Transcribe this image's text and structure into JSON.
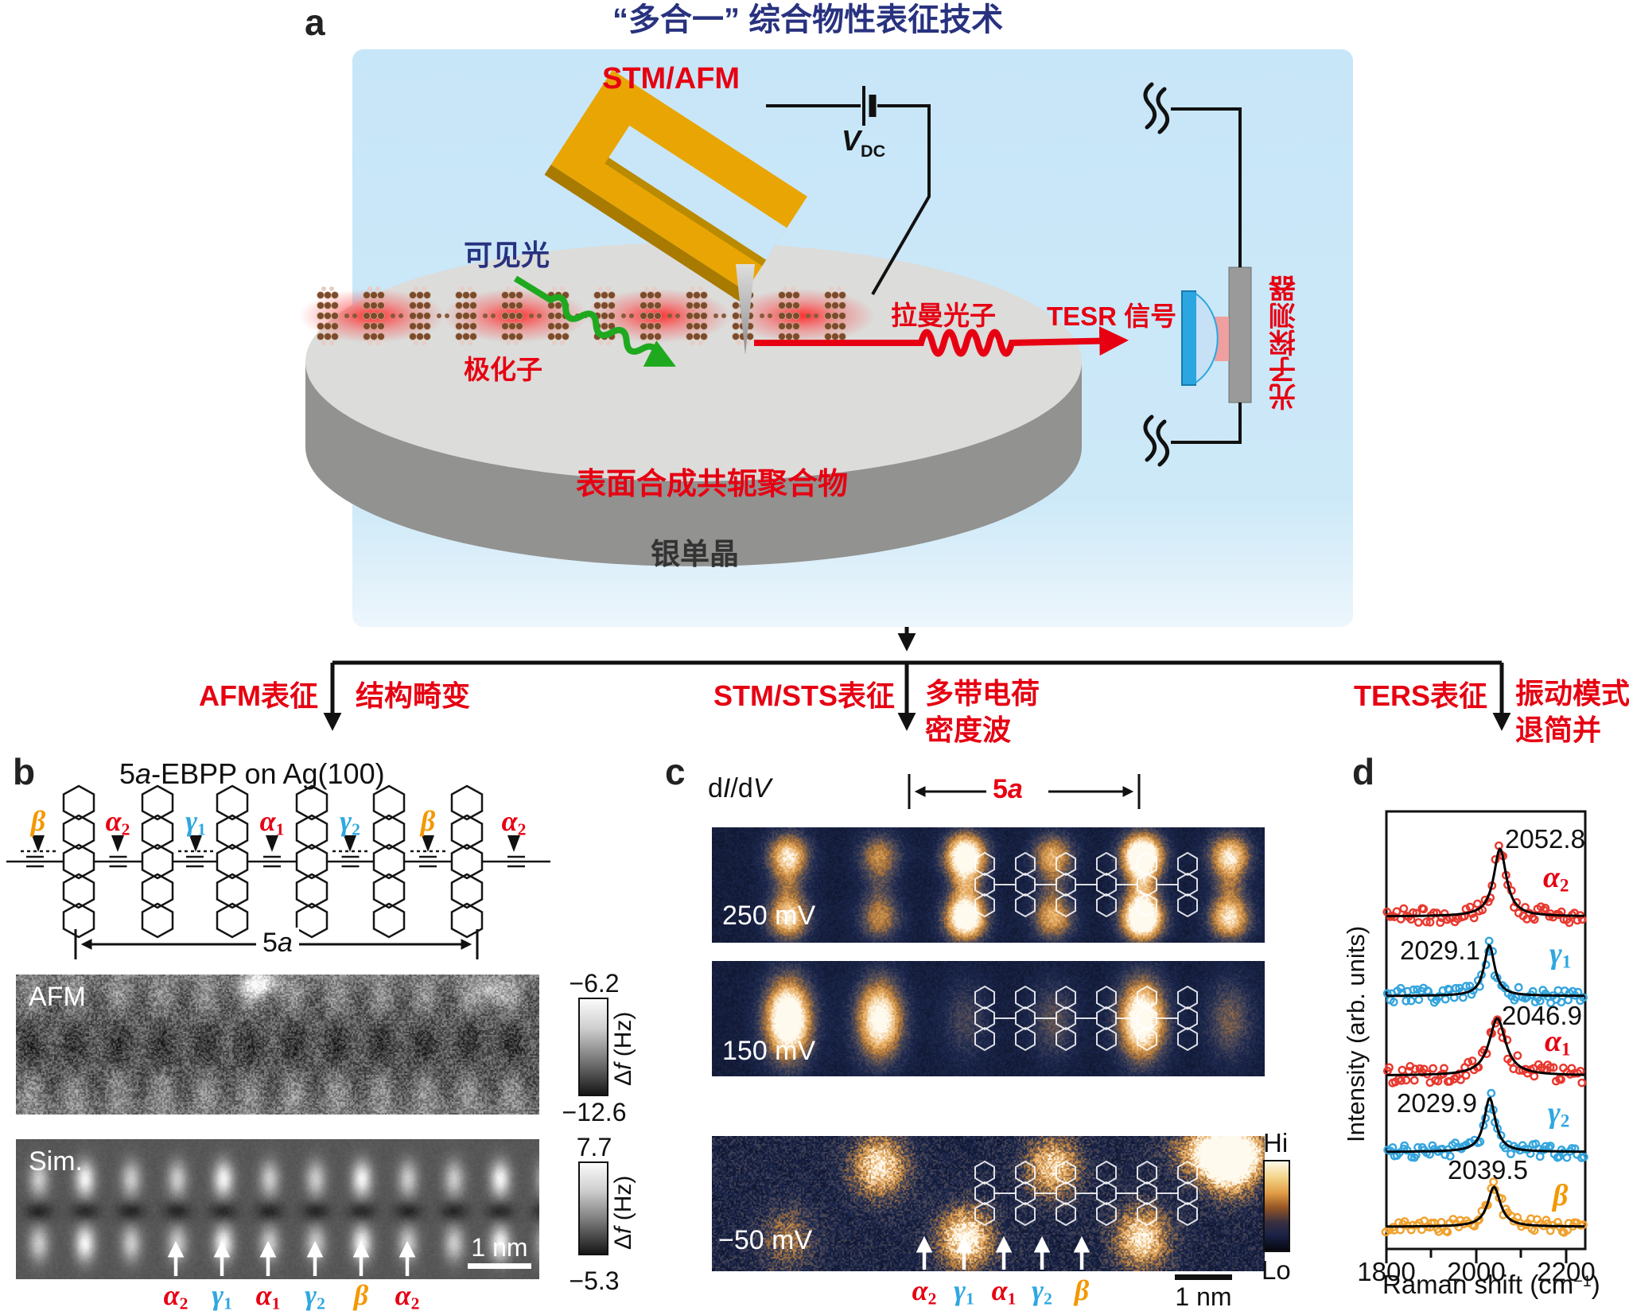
{
  "panel_a": {
    "label": "a",
    "title": "“多合一” 综合物性表征技术",
    "stm_afm_label": "STM/AFM",
    "vdc": {
      "base": "V",
      "sub": "DC"
    },
    "visible_light": "可见光",
    "polaron": "极化子",
    "raman_photon": "拉曼光子",
    "tesr_signal": "TESR 信号",
    "photon_detector": "光子探测器",
    "polymer_label": "表面合成共轭聚合物",
    "substrate_label": "银单晶"
  },
  "branches": [
    {
      "method": "AFM表征",
      "lines": [
        "结构畸变"
      ]
    },
    {
      "method": "STM/STS表征",
      "lines": [
        "多带电荷",
        "密度波"
      ]
    },
    {
      "method": "TERS表征",
      "lines": [
        "振动模式",
        "退简并"
      ]
    }
  ],
  "panel_b": {
    "label": "b",
    "title": {
      "pre": "5",
      "it": "a",
      "post": "-EBPP on Ag(100)"
    },
    "bond_labels": [
      {
        "base": "β",
        "sub": ""
      },
      {
        "base": "α",
        "sub": "2"
      },
      {
        "base": "γ",
        "sub": "1"
      },
      {
        "base": "α",
        "sub": "1"
      },
      {
        "base": "γ",
        "sub": "2"
      },
      {
        "base": "β",
        "sub": ""
      },
      {
        "base": "α",
        "sub": "2"
      }
    ],
    "span_label": {
      "pre": "5",
      "it": "a"
    },
    "afm_label": "AFM",
    "afm_scale": {
      "max": "−6.2",
      "min": "−12.6",
      "unit": {
        "pre": "Δ",
        "it": "f",
        "post": " (Hz)"
      }
    },
    "sim_label": "Sim.",
    "sim_scale": {
      "max": "7.7",
      "min": "−5.3",
      "unit": {
        "pre": "Δ",
        "it": "f",
        "post": " (Hz)"
      }
    },
    "scalebar": "1 nm",
    "mode_labels": [
      {
        "base": "α",
        "sub": "2"
      },
      {
        "base": "γ",
        "sub": "1"
      },
      {
        "base": "α",
        "sub": "1"
      },
      {
        "base": "γ",
        "sub": "2"
      },
      {
        "base": "β",
        "sub": ""
      },
      {
        "base": "α",
        "sub": "2"
      }
    ]
  },
  "panel_c": {
    "label": "c",
    "map_type": {
      "p0": "d",
      "p1": "I",
      "p2": "/d",
      "p3": "V"
    },
    "span_label": {
      "pre": "5",
      "it": "a"
    },
    "biases": [
      "250 mV",
      "150 mV",
      "−50 mV"
    ],
    "colorbar": {
      "hi": "Hi",
      "lo": "Lo"
    },
    "mode_labels": [
      {
        "base": "α",
        "sub": "2"
      },
      {
        "base": "γ",
        "sub": "1"
      },
      {
        "base": "α",
        "sub": "1"
      },
      {
        "base": "γ",
        "sub": "2"
      },
      {
        "base": "β",
        "sub": ""
      }
    ],
    "scalebar": "1 nm"
  },
  "panel_d": {
    "label": "d",
    "ylabel": "Intensity (arb. units)",
    "xlabel": {
      "pre": "Raman shift (cm",
      "sup": "−1",
      "post": ")"
    }
  },
  "chart_data": {
    "type": "line",
    "description": "Five vertically offset TERS spectra: open-circle data with black Lorentzian fits",
    "xlabel": "Raman shift (cm-1)",
    "ylabel": "Intensity (arb. units)",
    "xlim": [
      1800,
      2242
    ],
    "xticks": [
      1800,
      2000,
      2200
    ],
    "series": [
      {
        "name": "alpha2",
        "base": "α",
        "sub": "2",
        "peak": 2052.8,
        "peak_label": "2052.8",
        "color": "#E8392F",
        "cls": "alpha",
        "label_side": "right"
      },
      {
        "name": "gamma1",
        "base": "γ",
        "sub": "1",
        "peak": 2029.1,
        "peak_label": "2029.1",
        "color": "#35A5DE",
        "cls": "gamma",
        "label_side": "left"
      },
      {
        "name": "alpha1",
        "base": "α",
        "sub": "1",
        "peak": 2046.9,
        "peak_label": "2046.9",
        "color": "#E8392F",
        "cls": "alpha",
        "label_side": "right"
      },
      {
        "name": "gamma2",
        "base": "γ",
        "sub": "2",
        "peak": 2029.9,
        "peak_label": "2029.9",
        "color": "#35A5DE",
        "cls": "gamma",
        "label_side": "left"
      },
      {
        "name": "beta",
        "base": "β",
        "sub": "",
        "peak": 2039.5,
        "peak_label": "2039.5",
        "color": "#F0A22E",
        "cls": "beta",
        "label_side": "center"
      }
    ],
    "fit_color": "#000000",
    "legend_position": "right of each curve"
  },
  "colors": {
    "alpha": "#E60012",
    "gamma": "#2EA7E0",
    "beta": "#F39800",
    "accent_red": "#E60012",
    "title_navy": "#28327F",
    "panel_bg": "#C8E6F8"
  }
}
